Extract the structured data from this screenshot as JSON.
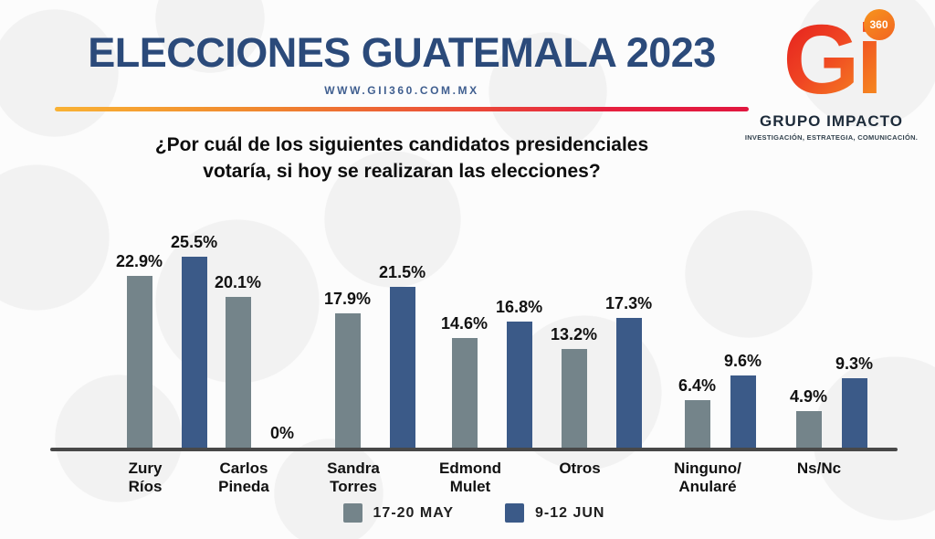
{
  "header": {
    "title": "ELECCIONES GUATEMALA 2023",
    "website": "WWW.GII360.COM.MX"
  },
  "logo": {
    "mark": "Gi",
    "badge": "360",
    "company": "GRUPO IMPACTO",
    "tagline": "INVESTIGACIÓN, ESTRATEGIA, COMUNICACIÓN."
  },
  "question": "¿Por cuál de los siguientes candidatos presidenciales\nvotaría, si hoy se realizaran las elecciones?",
  "chart_data": {
    "type": "bar",
    "title": "¿Por cuál de los siguientes candidatos presidenciales votaría, si hoy se realizaran las elecciones?",
    "categories": [
      "Zury\nRíos",
      "Carlos\nPineda",
      "Sandra\nTorres",
      "Edmond\nMulet",
      "Otros",
      "Ninguno/\nAnularé",
      "Ns/Nc"
    ],
    "series": [
      {
        "name": "17-20 MAY",
        "color": "#74848a",
        "values": [
          22.9,
          20.1,
          17.9,
          14.6,
          13.2,
          6.4,
          4.9
        ]
      },
      {
        "name": "9-12 JUN",
        "color": "#3b5a88",
        "values": [
          25.5,
          0,
          21.5,
          16.8,
          17.3,
          9.6,
          9.3
        ]
      }
    ],
    "value_suffix": "%",
    "ylim": [
      0,
      27
    ],
    "grid": false,
    "legend_position": "bottom"
  },
  "colors": {
    "title_navy": "#2b4a7a",
    "url_blue": "#3f5e8f",
    "divider_start": "#f9b234",
    "divider_end": "#e1173f",
    "bar_gray": "#74848a",
    "bar_blue": "#3b5a88",
    "axis_line": "#484848",
    "logo_red": "#e6261f",
    "logo_orange": "#f58220"
  }
}
